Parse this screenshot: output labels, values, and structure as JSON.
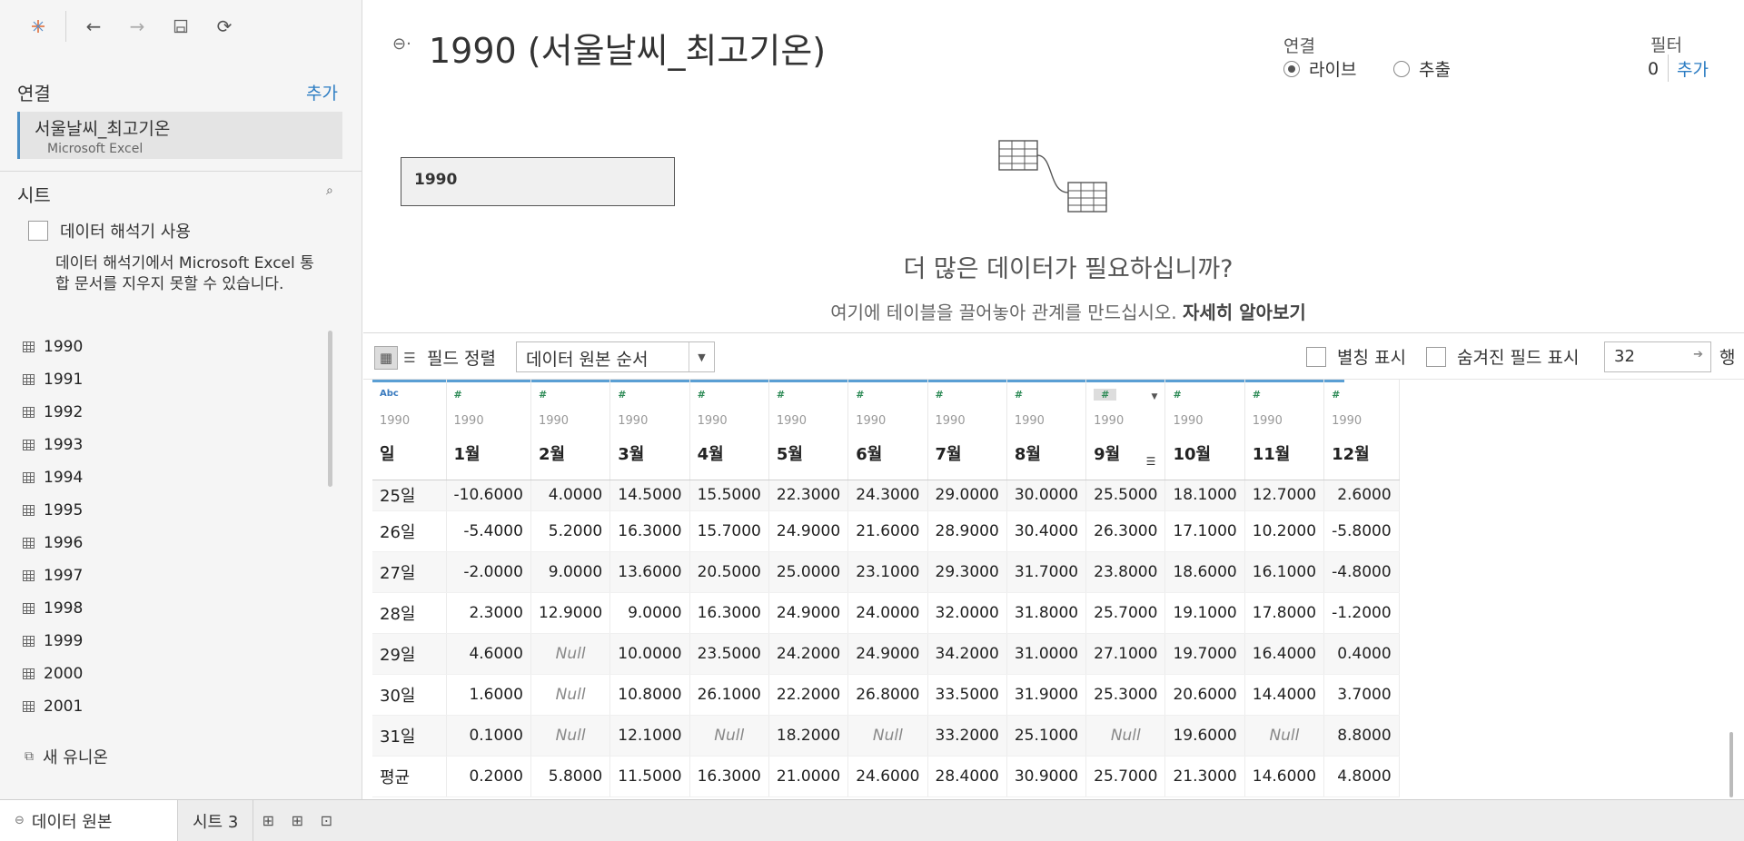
{
  "toolbar": {
    "icons": [
      "tableau-logo-icon",
      "back-icon",
      "forward-icon",
      "save-icon",
      "refresh-icon"
    ]
  },
  "connections": {
    "title": "연결",
    "add_label": "추가",
    "items": [
      {
        "name": "서울날씨_최고기온",
        "type": "Microsoft Excel"
      }
    ]
  },
  "sheets": {
    "title": "시트",
    "interpreter_label": "데이터 해석기 사용",
    "interpreter_note": "데이터 해석기에서 Microsoft Excel 통합 문서를 지우지 못할 수 있습니다.",
    "items": [
      "1990",
      "1991",
      "1992",
      "1993",
      "1994",
      "1995",
      "1996",
      "1997",
      "1998",
      "1999",
      "2000",
      "2001"
    ],
    "new_union": "새 유니온"
  },
  "header": {
    "title": "1990 (서울날씨_최고기온)",
    "connection_label": "연결",
    "live_label": "라이브",
    "extract_label": "추출",
    "connection_mode": "live",
    "filter_label": "필터",
    "filter_count": "0",
    "filter_add": "추가"
  },
  "canvas": {
    "table_name": "1990",
    "more_data_title": "더 많은 데이터가 필요하십니까?",
    "drag_hint": "여기에 테이블을 끌어놓아 관계를 만드십시오.",
    "learn_more": "자세히 알아보기"
  },
  "grid_toolbar": {
    "sort_label": "필드 정렬",
    "sort_value": "데이터 원본 순서",
    "alias_label": "별칭 표시",
    "hidden_label": "숨겨진 필드 표시",
    "rows_value": "32",
    "rows_label": "행"
  },
  "grid": {
    "columns": [
      {
        "type": "Abc",
        "source": "1990",
        "name": "일"
      },
      {
        "type": "#",
        "source": "1990",
        "name": "1월"
      },
      {
        "type": "#",
        "source": "1990",
        "name": "2월"
      },
      {
        "type": "#",
        "source": "1990",
        "name": "3월"
      },
      {
        "type": "#",
        "source": "1990",
        "name": "4월"
      },
      {
        "type": "#",
        "source": "1990",
        "name": "5월"
      },
      {
        "type": "#",
        "source": "1990",
        "name": "6월"
      },
      {
        "type": "#",
        "source": "1990",
        "name": "7월"
      },
      {
        "type": "#",
        "source": "1990",
        "name": "8월"
      },
      {
        "type": "#",
        "source": "1990",
        "name": "9월"
      },
      {
        "type": "#",
        "source": "1990",
        "name": "10월"
      },
      {
        "type": "#",
        "source": "1990",
        "name": "11월"
      },
      {
        "type": "#",
        "source": "1990",
        "name": "12월"
      }
    ],
    "rows": [
      [
        "25일",
        "-10.6000",
        "4.0000",
        "14.5000",
        "15.5000",
        "22.3000",
        "24.3000",
        "29.0000",
        "30.0000",
        "25.5000",
        "18.1000",
        "12.7000",
        "2.6000"
      ],
      [
        "26일",
        "-5.4000",
        "5.2000",
        "16.3000",
        "15.7000",
        "24.9000",
        "21.6000",
        "28.9000",
        "30.4000",
        "26.3000",
        "17.1000",
        "10.2000",
        "-5.8000"
      ],
      [
        "27일",
        "-2.0000",
        "9.0000",
        "13.6000",
        "20.5000",
        "25.0000",
        "23.1000",
        "29.3000",
        "31.7000",
        "23.8000",
        "18.6000",
        "16.1000",
        "-4.8000"
      ],
      [
        "28일",
        "2.3000",
        "12.9000",
        "9.0000",
        "16.3000",
        "24.9000",
        "24.0000",
        "32.0000",
        "31.8000",
        "25.7000",
        "19.1000",
        "17.8000",
        "-1.2000"
      ],
      [
        "29일",
        "4.6000",
        "Null",
        "10.0000",
        "23.5000",
        "24.2000",
        "24.9000",
        "34.2000",
        "31.0000",
        "27.1000",
        "19.7000",
        "16.4000",
        "0.4000"
      ],
      [
        "30일",
        "1.6000",
        "Null",
        "10.8000",
        "26.1000",
        "22.2000",
        "26.8000",
        "33.5000",
        "31.9000",
        "25.3000",
        "20.6000",
        "14.4000",
        "3.7000"
      ],
      [
        "31일",
        "0.1000",
        "Null",
        "12.1000",
        "Null",
        "18.2000",
        "Null",
        "33.2000",
        "25.1000",
        "Null",
        "19.6000",
        "Null",
        "8.8000"
      ],
      [
        "평균",
        "0.2000",
        "5.8000",
        "11.5000",
        "16.3000",
        "21.0000",
        "24.6000",
        "28.4000",
        "30.9000",
        "25.7000",
        "21.3000",
        "14.6000",
        "4.8000"
      ]
    ]
  },
  "bottom_tabs": {
    "data_source": "데이터 원본",
    "sheet": "시트 3"
  }
}
